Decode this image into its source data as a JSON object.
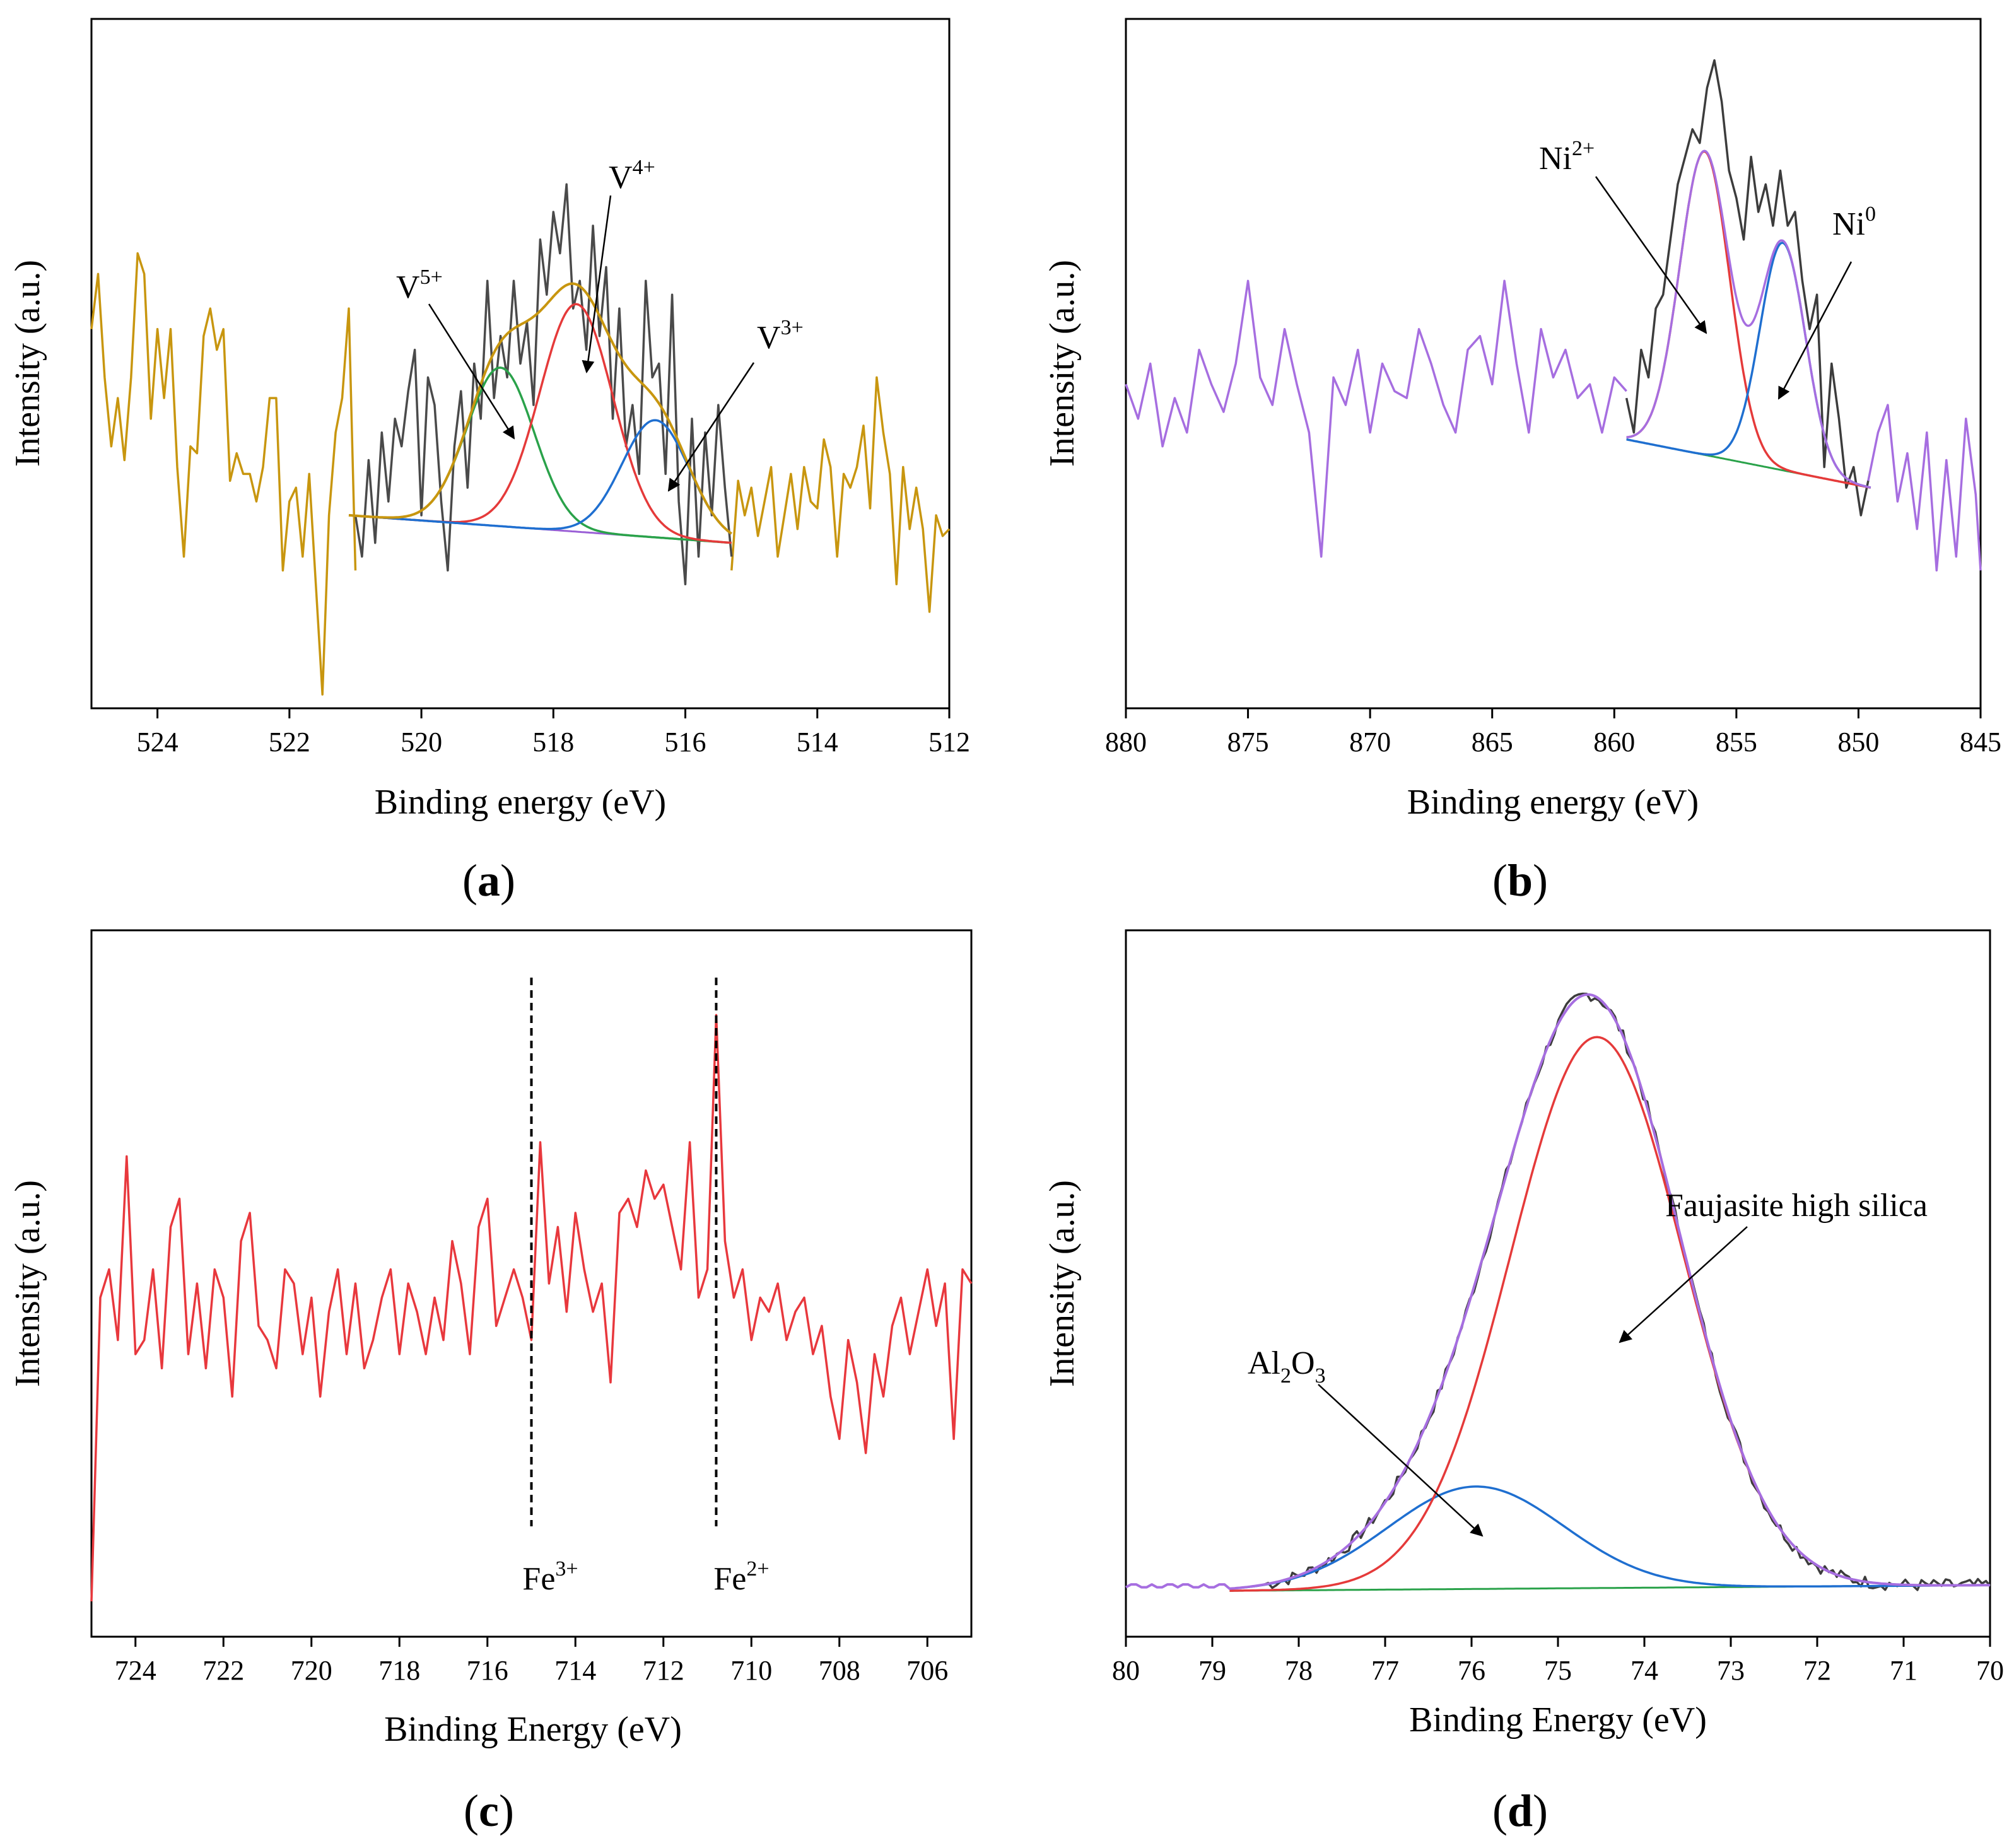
{
  "figure": {
    "panel_labels": [
      "a",
      "b",
      "c",
      "d"
    ]
  },
  "chart_data": [
    {
      "id": "a",
      "type": "line",
      "title": "",
      "xlabel": "Binding energy (eV)",
      "ylabel": "Intensity (a.u.)",
      "xlim": [
        525,
        512
      ],
      "ylim": [
        0,
        100
      ],
      "xticks": [
        524,
        522,
        520,
        518,
        516,
        514,
        512
      ],
      "colors": {
        "raw": "#c8960f",
        "raw_fit_region": "#4a4a4a",
        "envelope": "#c8960f",
        "v5": "#2aa24a",
        "v4": "#e53a3a",
        "v3": "#1f6fd0",
        "background": "#9a5fd6"
      },
      "series": [
        {
          "name": "raw_outer",
          "x": [
            525,
            524.9,
            524.8,
            524.7,
            524.6,
            524.5,
            524.4,
            524.3,
            524.2,
            524.1,
            524,
            523.9,
            523.8,
            523.7,
            523.6,
            523.5,
            523.4,
            523.3,
            523.2,
            523.1,
            523,
            522.9,
            522.8,
            522.7,
            522.6,
            522.5,
            522.4,
            522.3,
            522.2,
            522.1,
            522,
            521.9,
            521.8,
            521.7,
            521.6,
            521.5,
            521.4,
            521.3,
            521.2,
            521.1,
            521.0
          ],
          "y": [
            55,
            63,
            48,
            38,
            45,
            36,
            48,
            66,
            63,
            42,
            55,
            45,
            55,
            35,
            22,
            38,
            37,
            54,
            58,
            52,
            55,
            33,
            37,
            34,
            34,
            30,
            35,
            45,
            45,
            20,
            30,
            32,
            22,
            34,
            18,
            2,
            28,
            40,
            45,
            58,
            20
          ]
        },
        {
          "name": "raw_inner",
          "x": [
            521.0,
            520.9,
            520.8,
            520.7,
            520.6,
            520.5,
            520.4,
            520.3,
            520.2,
            520.1,
            520.0,
            519.9,
            519.8,
            519.7,
            519.6,
            519.5,
            519.4,
            519.3,
            519.2,
            519.1,
            519.0,
            518.9,
            518.8,
            518.7,
            518.6,
            518.5,
            518.4,
            518.3,
            518.2,
            518.1,
            518.0,
            517.9,
            517.8,
            517.7,
            517.6,
            517.5,
            517.4,
            517.3,
            517.2,
            517.1,
            517.0,
            516.9,
            516.8,
            516.7,
            516.6,
            516.5,
            516.4,
            516.3,
            516.2,
            516.1,
            516.0,
            515.9,
            515.8,
            515.7,
            515.6,
            515.5,
            515.4,
            515.3
          ],
          "y": [
            28,
            22,
            36,
            24,
            40,
            30,
            42,
            38,
            46,
            52,
            28,
            48,
            44,
            30,
            20,
            38,
            46,
            32,
            50,
            42,
            62,
            45,
            54,
            48,
            62,
            50,
            56,
            44,
            68,
            60,
            72,
            66,
            76,
            58,
            62,
            52,
            70,
            54,
            64,
            42,
            58,
            38,
            44,
            34,
            62,
            48,
            50,
            34,
            60,
            30,
            18,
            42,
            22,
            40,
            28,
            44,
            32,
            22
          ]
        },
        {
          "name": "raw_tail",
          "x": [
            515.3,
            515.2,
            515.1,
            515,
            514.9,
            514.8,
            514.7,
            514.6,
            514.5,
            514.4,
            514.3,
            514.2,
            514.1,
            514,
            513.9,
            513.8,
            513.7,
            513.6,
            513.5,
            513.4,
            513.3,
            513.2,
            513.1,
            513,
            512.9,
            512.8,
            512.7,
            512.6,
            512.5,
            512.4,
            512.3,
            512.2,
            512.1,
            512
          ],
          "y": [
            20,
            33,
            28,
            32,
            25,
            30,
            35,
            22,
            28,
            34,
            26,
            35,
            30,
            29,
            39,
            35,
            22,
            34,
            32,
            35,
            41,
            29,
            48,
            40,
            34,
            18,
            35,
            26,
            32,
            26,
            14,
            28,
            25,
            26
          ]
        },
        {
          "name": "envelope",
          "peaks": [
            {
              "center": 518.8,
              "height": 23,
              "fwhm": 1.2
            },
            {
              "center": 517.65,
              "height": 33,
              "fwhm": 1.3
            },
            {
              "center": 516.45,
              "height": 17,
              "fwhm": 1.2
            }
          ],
          "baseline": [
            521.1,
            28,
            515.3,
            24
          ],
          "range": [
            521.1,
            515.3
          ]
        },
        {
          "name": "V5+",
          "peak": {
            "center": 518.8,
            "height": 23,
            "fwhm": 1.2
          }
        },
        {
          "name": "V4+",
          "peak": {
            "center": 517.65,
            "height": 33,
            "fwhm": 1.3
          }
        },
        {
          "name": "V3+",
          "peak": {
            "center": 516.45,
            "height": 17,
            "fwhm": 1.2
          }
        }
      ],
      "annotations": [
        {
          "label": "V",
          "sup": "5+"
        },
        {
          "label": "V",
          "sup": "4+"
        },
        {
          "label": "V",
          "sup": "3+"
        }
      ]
    },
    {
      "id": "b",
      "type": "line",
      "title": "",
      "xlabel": "Binding energy (eV)",
      "ylabel": "Intensity (a.u.)",
      "xlim": [
        880,
        845
      ],
      "ylim": [
        0,
        100
      ],
      "xticks": [
        880,
        875,
        870,
        865,
        860,
        855,
        850,
        845
      ],
      "colors": {
        "raw": "#a66ee0",
        "raw_fit_region": "#3c3c3c",
        "ni2": "#e53a3a",
        "ni0": "#1f6fd0",
        "background": "#2aa24a",
        "envelope": "#a66ee0"
      },
      "series": [
        {
          "name": "raw_outer_left",
          "x": [
            880,
            879.5,
            879,
            878.5,
            878,
            877.5,
            877,
            876.5,
            876,
            875.5,
            875,
            874.5,
            874,
            873.5,
            873,
            872.5,
            872,
            871.5,
            871,
            870.5,
            870,
            869.5,
            869,
            868.5,
            868,
            867.5,
            867,
            866.5,
            866,
            865.5,
            865,
            864.5,
            864,
            863.5,
            863,
            862.5,
            862,
            861.5,
            861,
            860.5,
            860,
            859.5
          ],
          "y": [
            47,
            42,
            50,
            38,
            45,
            40,
            52,
            47,
            43,
            50,
            62,
            48,
            44,
            55,
            47,
            40,
            22,
            48,
            44,
            52,
            40,
            50,
            46,
            45,
            55,
            50,
            44,
            40,
            52,
            54,
            47,
            62,
            50,
            40,
            55,
            48,
            52,
            45,
            47,
            40,
            48,
            46
          ]
        },
        {
          "name": "raw_inner",
          "x": [
            859.5,
            859.2,
            858.9,
            858.6,
            858.3,
            858,
            857.7,
            857.4,
            857.1,
            856.8,
            856.5,
            856.2,
            855.9,
            855.6,
            855.3,
            855,
            854.7,
            854.4,
            854.1,
            853.8,
            853.5,
            853.2,
            852.9,
            852.6,
            852.3,
            852,
            851.7,
            851.4,
            851.1,
            850.8,
            850.5,
            850.2,
            849.9,
            849.6
          ],
          "y": [
            45,
            40,
            52,
            48,
            58,
            60,
            68,
            76,
            80,
            84,
            82,
            90,
            94,
            88,
            78,
            74,
            68,
            80,
            72,
            76,
            70,
            78,
            70,
            72,
            62,
            55,
            60,
            35,
            50,
            42,
            32,
            35,
            28,
            33
          ]
        },
        {
          "name": "raw_outer_right",
          "x": [
            849.6,
            849.2,
            848.8,
            848.4,
            848,
            847.6,
            847.2,
            846.8,
            846.4,
            846,
            845.6,
            845.2,
            845
          ],
          "y": [
            33,
            40,
            44,
            30,
            37,
            26,
            40,
            20,
            36,
            22,
            42,
            31,
            20
          ]
        },
        {
          "name": "Ni2+",
          "peak": {
            "center": 856.3,
            "height": 44,
            "fwhm": 2.4
          }
        },
        {
          "name": "Ni0",
          "peak": {
            "center": 853.1,
            "height": 33,
            "fwhm": 2.2
          }
        },
        {
          "name": "background",
          "line": [
            859.5,
            39,
            849.5,
            32
          ]
        },
        {
          "name": "envelope",
          "peaks": [
            {
              "center": 856.3,
              "height": 44,
              "fwhm": 2.4
            },
            {
              "center": 853.1,
              "height": 33,
              "fwhm": 2.2
            }
          ],
          "range": [
            859.5,
            849.5
          ]
        }
      ],
      "annotations": [
        {
          "label": "Ni",
          "sup": "2+"
        },
        {
          "label": "Ni",
          "sup": "0"
        }
      ]
    },
    {
      "id": "c",
      "type": "line",
      "title": "",
      "xlabel": "Binding Energy (eV)",
      "ylabel": "Intensity (a.u.)",
      "xlim": [
        725,
        705
      ],
      "ylim": [
        0,
        100
      ],
      "xticks": [
        724,
        722,
        720,
        718,
        716,
        714,
        712,
        710,
        708,
        706
      ],
      "colors": {
        "raw": "#e8383d",
        "marker": "#000000"
      },
      "series": [
        {
          "name": "raw",
          "x": [
            725,
            724.8,
            724.6,
            724.4,
            724.2,
            724,
            723.8,
            723.6,
            723.4,
            723.2,
            723,
            722.8,
            722.6,
            722.4,
            722.2,
            722,
            721.8,
            721.6,
            721.4,
            721.2,
            721,
            720.8,
            720.6,
            720.4,
            720.2,
            720,
            719.8,
            719.6,
            719.4,
            719.2,
            719,
            718.8,
            718.6,
            718.4,
            718.2,
            718,
            717.8,
            717.6,
            717.4,
            717.2,
            717,
            716.8,
            716.6,
            716.4,
            716.2,
            716,
            715.8,
            715.6,
            715.4,
            715.2,
            715,
            714.8,
            714.6,
            714.4,
            714.2,
            714,
            713.8,
            713.6,
            713.4,
            713.2,
            713,
            712.8,
            712.6,
            712.4,
            712.2,
            712,
            711.8,
            711.6,
            711.4,
            711.2,
            711,
            710.8,
            710.6,
            710.4,
            710.2,
            710,
            709.8,
            709.6,
            709.4,
            709.2,
            709,
            708.8,
            708.6,
            708.4,
            708.2,
            708,
            707.8,
            707.6,
            707.4,
            707.2,
            707,
            706.8,
            706.6,
            706.4,
            706.2,
            706,
            705.8,
            705.6,
            705.4,
            705.2,
            705
          ],
          "y": [
            5,
            48,
            52,
            42,
            68,
            40,
            42,
            52,
            38,
            58,
            62,
            40,
            50,
            38,
            52,
            48,
            34,
            56,
            60,
            44,
            42,
            38,
            52,
            50,
            40,
            48,
            34,
            46,
            52,
            40,
            50,
            38,
            42,
            48,
            52,
            40,
            50,
            46,
            40,
            48,
            42,
            56,
            50,
            40,
            58,
            62,
            44,
            48,
            52,
            48,
            42,
            70,
            50,
            58,
            46,
            60,
            52,
            46,
            50,
            36,
            60,
            62,
            58,
            66,
            62,
            64,
            58,
            52,
            70,
            48,
            52,
            88,
            56,
            48,
            52,
            42,
            48,
            46,
            50,
            42,
            46,
            48,
            40,
            44,
            34,
            28,
            42,
            36,
            26,
            40,
            34,
            44,
            48,
            40,
            46,
            52,
            44,
            50,
            28,
            52,
            50
          ]
        }
      ],
      "markers": [
        {
          "label": "Fe",
          "sup": "3+",
          "x": 715
        },
        {
          "label": "Fe",
          "sup": "2+",
          "x": 710.8
        }
      ]
    },
    {
      "id": "d",
      "type": "line",
      "title": "",
      "xlabel": "Binding Energy (eV)",
      "ylabel": "Intensity (a.u.)",
      "xlim": [
        80,
        70
      ],
      "ylim": [
        0,
        100
      ],
      "xticks": [
        80,
        79,
        78,
        77,
        76,
        75,
        74,
        73,
        72,
        71,
        70
      ],
      "colors": {
        "raw": "#3c3c3c",
        "faujasite": "#e53a3a",
        "al2o3": "#1f6fd0",
        "background": "#2aa24a",
        "envelope": "#a66ee0"
      },
      "series": [
        {
          "name": "faujasite",
          "peak": {
            "center": 74.55,
            "height": 78,
            "fwhm": 2.35
          }
        },
        {
          "name": "al2o3",
          "peak": {
            "center": 75.95,
            "height": 14.5,
            "fwhm": 2.4
          }
        },
        {
          "name": "background",
          "line": [
            78.8,
            6.5,
            70,
            7.3
          ]
        }
      ],
      "annotations": [
        {
          "text": "Faujasite high silica"
        },
        {
          "label": "Al",
          "sub1": "2",
          "mid": "O",
          "sub2": "3"
        }
      ]
    }
  ]
}
